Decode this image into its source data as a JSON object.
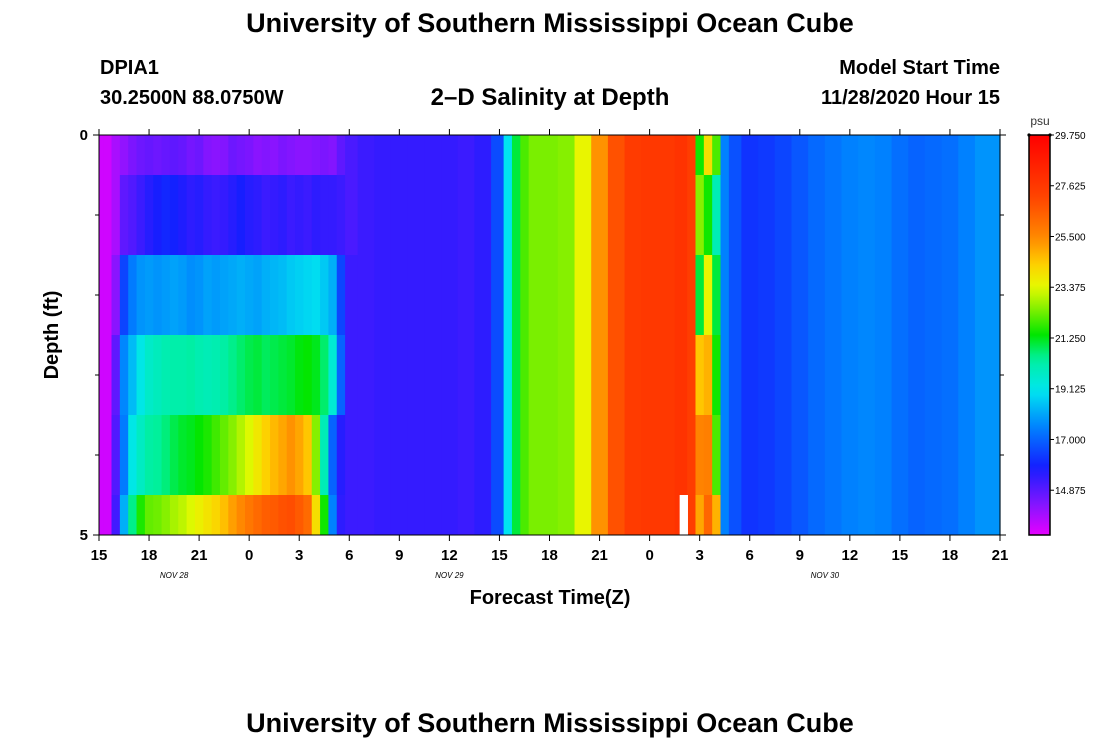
{
  "header": {
    "title": "University of Southern Mississippi Ocean Cube",
    "station_id": "DPIA1",
    "station_coords": "30.2500N 88.0750W",
    "chart_title": "2–D Salinity at Depth",
    "model_start_label": "Model Start Time",
    "model_start_value": "11/28/2020 Hour 15"
  },
  "footer": {
    "title": "University of Southern Mississippi Ocean Cube"
  },
  "chart_data": {
    "type": "heatmap",
    "title": "2–D Salinity at Depth",
    "xlabel": "Forecast Time(Z)",
    "ylabel": "Depth (ft)",
    "x_range_hours": [
      0,
      54
    ],
    "y_range": [
      0,
      5
    ],
    "x_ticks": [
      {
        "h": 0,
        "label": "15"
      },
      {
        "h": 3,
        "label": "18"
      },
      {
        "h": 6,
        "label": "21"
      },
      {
        "h": 9,
        "label": "0"
      },
      {
        "h": 12,
        "label": "3"
      },
      {
        "h": 15,
        "label": "6"
      },
      {
        "h": 18,
        "label": "9"
      },
      {
        "h": 21,
        "label": "12"
      },
      {
        "h": 24,
        "label": "15"
      },
      {
        "h": 27,
        "label": "18"
      },
      {
        "h": 30,
        "label": "21"
      },
      {
        "h": 33,
        "label": "0"
      },
      {
        "h": 36,
        "label": "3"
      },
      {
        "h": 39,
        "label": "6"
      },
      {
        "h": 42,
        "label": "9"
      },
      {
        "h": 45,
        "label": "12"
      },
      {
        "h": 48,
        "label": "15"
      },
      {
        "h": 51,
        "label": "18"
      },
      {
        "h": 54,
        "label": "21"
      }
    ],
    "y_ticks": [
      {
        "v": 0,
        "label": "0"
      },
      {
        "v": 5,
        "label": "5"
      }
    ],
    "y_minor_ticks": [
      1,
      2,
      3,
      4
    ],
    "date_labels": [
      {
        "h": 4.5,
        "label": "NOV  28"
      },
      {
        "h": 21,
        "label": "NOV  29"
      },
      {
        "h": 43.5,
        "label": "NOV  30"
      }
    ],
    "colorbar": {
      "unit": "psu",
      "min": 13.0,
      "max": 29.75,
      "tick_values": [
        29.75,
        27.625,
        25.5,
        23.375,
        21.25,
        19.125,
        17.0,
        14.875
      ],
      "tick_labels": [
        "29.750",
        "27.625",
        "25.500",
        "23.375",
        "21.250",
        "19.125",
        "17.000",
        "14.875"
      ]
    },
    "depth_layers": [
      {
        "depth": [
          0,
          0.5
        ],
        "times": [
          0,
          0.5,
          1,
          1.5,
          2,
          2.5,
          3,
          3.5,
          4,
          4.5,
          5,
          5.5,
          6,
          6.5,
          7,
          7.5,
          8,
          8.5,
          9,
          9.5,
          10,
          10.5,
          11,
          11.5,
          12,
          12.5,
          13,
          13.5,
          14,
          14.5,
          15,
          16,
          17,
          18,
          19,
          20,
          21,
          22,
          23,
          24,
          24.5,
          25,
          25.5,
          26,
          27,
          28,
          29,
          30,
          31,
          32,
          33,
          34,
          35,
          35.5,
          36,
          36.5,
          37,
          37.5,
          38,
          39,
          40,
          41,
          42,
          43,
          44,
          45,
          46,
          47,
          48,
          49,
          50,
          51,
          52,
          53,
          54
        ],
        "values": [
          13.3,
          13.3,
          13.8,
          14.1,
          14.4,
          14.6,
          14.7,
          14.6,
          14.7,
          14.8,
          14.7,
          14.5,
          14.6,
          14.3,
          14.2,
          14.3,
          14.6,
          14.5,
          14.4,
          14.2,
          14.3,
          14.2,
          14.4,
          14.3,
          14.2,
          14.2,
          14.3,
          14.4,
          14.3,
          14.8,
          15.1,
          15.3,
          15.4,
          15.4,
          15.4,
          15.4,
          15.4,
          15.3,
          15.5,
          16.6,
          19.0,
          21.0,
          22.0,
          22.4,
          22.4,
          22.5,
          23.5,
          25.3,
          26.8,
          27.5,
          27.6,
          27.6,
          27.8,
          27.4,
          21.5,
          24.0,
          22.0,
          17.5,
          16.7,
          16.2,
          16.3,
          16.5,
          16.8,
          17.1,
          17.3,
          17.5,
          17.6,
          17.5,
          17.2,
          17.0,
          17.1,
          17.2,
          17.5,
          17.8,
          17.8
        ]
      },
      {
        "depth": [
          0.5,
          1.5
        ],
        "times": [
          0,
          0.5,
          1,
          1.5,
          2,
          2.5,
          3,
          3.5,
          4,
          4.5,
          5,
          5.5,
          6,
          6.5,
          7,
          7.5,
          8,
          8.5,
          9,
          9.5,
          10,
          10.5,
          11,
          11.5,
          12,
          12.5,
          13,
          13.5,
          14,
          14.5,
          15,
          16,
          17,
          18,
          19,
          20,
          21,
          22,
          23,
          24,
          24.5,
          25,
          25.5,
          26,
          27,
          28,
          29,
          30,
          31,
          32,
          33,
          34,
          35,
          35.5,
          36,
          36.5,
          37,
          37.5,
          38,
          39,
          40,
          41,
          42,
          43,
          44,
          45,
          46,
          47,
          48,
          49,
          50,
          51,
          52,
          53,
          54
        ],
        "values": [
          13.3,
          13.3,
          13.8,
          14.8,
          15.0,
          15.3,
          15.6,
          15.8,
          16.0,
          15.9,
          15.7,
          15.5,
          15.6,
          15.4,
          15.3,
          15.4,
          15.6,
          15.8,
          15.6,
          15.5,
          15.3,
          15.4,
          15.5,
          15.3,
          15.4,
          15.3,
          15.5,
          15.4,
          15.4,
          15.3,
          15.1,
          15.3,
          15.4,
          15.4,
          15.4,
          15.4,
          15.4,
          15.3,
          15.5,
          16.6,
          19.0,
          21.0,
          22.0,
          22.4,
          22.4,
          22.5,
          23.5,
          25.3,
          26.8,
          27.5,
          27.6,
          27.6,
          27.8,
          27.4,
          22.5,
          21.5,
          20.0,
          17.5,
          16.7,
          16.2,
          16.3,
          16.5,
          16.8,
          17.1,
          17.3,
          17.5,
          17.6,
          17.5,
          17.2,
          17.0,
          17.1,
          17.2,
          17.5,
          17.8,
          17.8
        ]
      },
      {
        "depth": [
          1.5,
          2.5
        ],
        "times": [
          0,
          0.5,
          1,
          1.5,
          2,
          2.5,
          3,
          3.5,
          4,
          4.5,
          5,
          5.5,
          6,
          6.5,
          7,
          7.5,
          8,
          8.5,
          9,
          9.5,
          10,
          10.5,
          11,
          11.5,
          12,
          12.5,
          13,
          13.5,
          14,
          14.5,
          15,
          16,
          17,
          18,
          19,
          20,
          21,
          22,
          23,
          24,
          24.5,
          25,
          25.5,
          26,
          27,
          28,
          29,
          30,
          31,
          32,
          33,
          34,
          35,
          35.5,
          36,
          36.5,
          37,
          37.5,
          38,
          39,
          40,
          41,
          42,
          43,
          44,
          45,
          46,
          47,
          48,
          49,
          50,
          51,
          52,
          53,
          54
        ],
        "values": [
          13.3,
          13.3,
          14.2,
          16.5,
          17.4,
          17.8,
          17.9,
          17.8,
          17.9,
          18.0,
          17.9,
          17.7,
          17.8,
          18.0,
          17.9,
          18.0,
          18.1,
          18.2,
          18.1,
          18.0,
          18.2,
          18.3,
          18.4,
          18.6,
          18.7,
          18.8,
          18.9,
          18.6,
          18.2,
          16.5,
          15.3,
          15.3,
          15.4,
          15.4,
          15.4,
          15.4,
          15.4,
          15.3,
          15.5,
          16.6,
          19.0,
          21.0,
          22.0,
          22.4,
          22.4,
          22.5,
          23.5,
          25.3,
          26.8,
          27.5,
          27.6,
          27.6,
          27.8,
          27.4,
          21.0,
          23.5,
          21.0,
          17.5,
          16.7,
          16.2,
          16.3,
          16.5,
          16.8,
          17.1,
          17.3,
          17.5,
          17.6,
          17.5,
          17.2,
          17.0,
          17.1,
          17.2,
          17.5,
          17.8,
          17.8
        ]
      },
      {
        "depth": [
          2.5,
          3.5
        ],
        "times": [
          0,
          0.5,
          1,
          1.5,
          2,
          2.5,
          3,
          3.5,
          4,
          4.5,
          5,
          5.5,
          6,
          6.5,
          7,
          7.5,
          8,
          8.5,
          9,
          9.5,
          10,
          10.5,
          11,
          11.5,
          12,
          12.5,
          13,
          13.5,
          14,
          14.5,
          15,
          16,
          17,
          18,
          19,
          20,
          21,
          22,
          23,
          24,
          24.5,
          25,
          25.5,
          26,
          27,
          28,
          29,
          30,
          31,
          32,
          33,
          34,
          35,
          35.5,
          36,
          36.5,
          37,
          37.5,
          38,
          39,
          40,
          41,
          42,
          43,
          44,
          45,
          46,
          47,
          48,
          49,
          50,
          51,
          52,
          53,
          54
        ],
        "values": [
          13.3,
          13.3,
          14.8,
          17.6,
          18.4,
          19.2,
          19.7,
          19.9,
          20.1,
          20.2,
          20.2,
          20.3,
          20.1,
          20.0,
          20.1,
          20.3,
          20.5,
          20.7,
          20.9,
          21.0,
          20.8,
          20.9,
          21.0,
          21.1,
          21.3,
          21.4,
          21.2,
          20.7,
          19.5,
          17.0,
          15.3,
          15.3,
          15.4,
          15.4,
          15.4,
          15.4,
          15.4,
          15.3,
          15.5,
          16.6,
          19.0,
          21.0,
          22.0,
          22.4,
          22.4,
          22.5,
          23.5,
          25.3,
          26.8,
          27.5,
          27.6,
          27.6,
          27.8,
          27.4,
          24.5,
          24.8,
          21.5,
          17.5,
          16.7,
          16.2,
          16.3,
          16.5,
          16.8,
          17.1,
          17.3,
          17.5,
          17.6,
          17.5,
          17.2,
          17.0,
          17.1,
          17.2,
          17.5,
          17.8,
          17.8
        ]
      },
      {
        "depth": [
          3.5,
          4.5
        ],
        "times": [
          0,
          0.5,
          1,
          1.5,
          2,
          2.5,
          3,
          3.5,
          4,
          4.5,
          5,
          5.5,
          6,
          6.5,
          7,
          7.5,
          8,
          8.5,
          9,
          9.5,
          10,
          10.5,
          11,
          11.5,
          12,
          12.5,
          13,
          13.5,
          14,
          14.5,
          15,
          16,
          17,
          18,
          19,
          20,
          21,
          22,
          23,
          24,
          24.5,
          25,
          25.5,
          26,
          27,
          28,
          29,
          30,
          31,
          32,
          33,
          34,
          35,
          35.5,
          36,
          36.5,
          37,
          37.5,
          38,
          39,
          40,
          41,
          42,
          43,
          44,
          45,
          46,
          47,
          48,
          49,
          50,
          51,
          52,
          53,
          54
        ],
        "values": [
          13.3,
          13.3,
          15.0,
          17.4,
          19.2,
          19.8,
          20.3,
          20.4,
          20.6,
          20.9,
          21.1,
          21.2,
          21.4,
          21.6,
          21.9,
          22.2,
          22.5,
          22.9,
          23.3,
          23.8,
          24.3,
          24.7,
          25.0,
          25.3,
          25.0,
          24.5,
          22.5,
          20.0,
          17.0,
          15.6,
          15.3,
          15.3,
          15.4,
          15.4,
          15.4,
          15.4,
          15.4,
          15.3,
          15.5,
          16.6,
          19.0,
          21.0,
          22.0,
          22.4,
          22.4,
          22.5,
          23.5,
          25.3,
          26.8,
          27.5,
          27.6,
          27.6,
          27.8,
          27.4,
          25.6,
          25.7,
          22.0,
          17.5,
          16.7,
          16.2,
          16.3,
          16.5,
          16.8,
          17.1,
          17.3,
          17.5,
          17.6,
          17.5,
          17.2,
          17.0,
          17.1,
          17.2,
          17.5,
          17.8,
          17.8
        ]
      },
      {
        "depth": [
          4.5,
          5
        ],
        "times": [
          0,
          0.5,
          1,
          1.5,
          2,
          2.5,
          3,
          3.5,
          4,
          4.5,
          5,
          5.5,
          6,
          6.5,
          7,
          7.5,
          8,
          8.5,
          9,
          9.5,
          10,
          10.5,
          11,
          11.5,
          12,
          12.5,
          13,
          13.5,
          14,
          14.5,
          15,
          16,
          17,
          18,
          19,
          20,
          21,
          22,
          23,
          24,
          24.5,
          25,
          25.5,
          26,
          27,
          28,
          29,
          30,
          31,
          32,
          33,
          34,
          35,
          35.5,
          36,
          36.5,
          37,
          37.5,
          38,
          39,
          40,
          41,
          42,
          43,
          44,
          45,
          46,
          47,
          48,
          49,
          50,
          51,
          52,
          53,
          54
        ],
        "values": [
          13.3,
          13.3,
          15.2,
          18.2,
          20.5,
          21.6,
          22.2,
          22.3,
          22.5,
          22.8,
          23.0,
          23.3,
          23.6,
          23.9,
          24.2,
          24.6,
          25.1,
          25.5,
          25.9,
          26.2,
          26.5,
          26.6,
          26.8,
          26.9,
          26.6,
          26.2,
          24.0,
          21.5,
          17.5,
          15.5,
          15.3,
          15.3,
          15.4,
          15.4,
          15.4,
          15.4,
          15.4,
          15.3,
          15.5,
          16.6,
          19.0,
          21.0,
          22.0,
          22.4,
          22.4,
          22.5,
          23.5,
          25.3,
          26.8,
          27.5,
          27.6,
          27.6,
          27.8,
          27.4,
          25.0,
          26.3,
          24.8,
          17.5,
          16.7,
          16.2,
          16.3,
          16.5,
          16.8,
          17.1,
          17.3,
          17.5,
          17.6,
          17.5,
          17.2,
          17.0,
          17.1,
          17.2,
          17.5,
          17.8,
          17.8
        ]
      }
    ],
    "gap_marks": [
      {
        "h_start": 34.8,
        "h_end": 35.3,
        "depth_start": 4.5,
        "depth_end": 5
      }
    ]
  }
}
